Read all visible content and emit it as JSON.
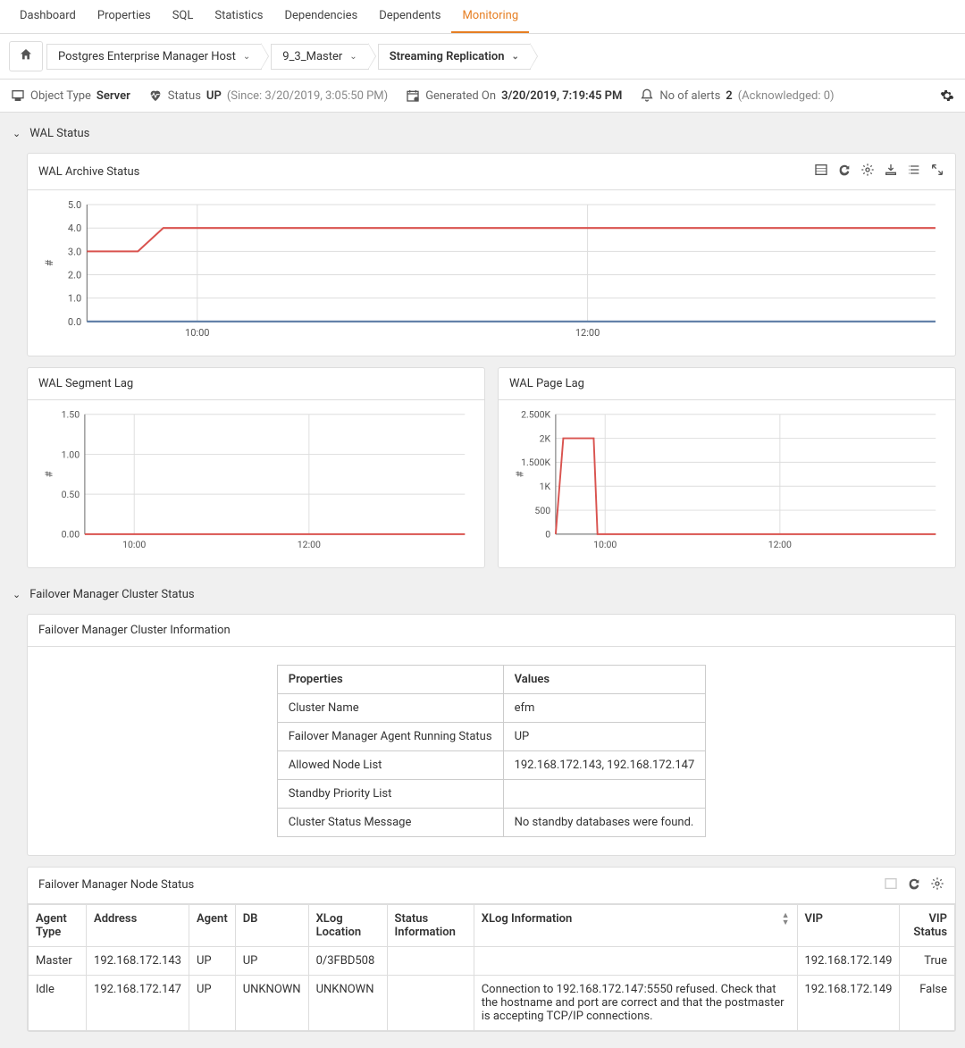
{
  "tabs": [
    "Dashboard",
    "Properties",
    "SQL",
    "Statistics",
    "Dependencies",
    "Dependents",
    "Monitoring"
  ],
  "active_tab": "Monitoring",
  "breadcrumbs": [
    {
      "label": "Postgres Enterprise Manager Host",
      "bold": false
    },
    {
      "label": "9_3_Master",
      "bold": false
    },
    {
      "label": "Streaming Replication",
      "bold": true
    }
  ],
  "status_bar": {
    "object_type_label": "Object Type",
    "object_type_value": "Server",
    "status_label": "Status",
    "status_value": "UP",
    "status_since": "(Since: 3/20/2019, 3:05:50 PM)",
    "generated_label": "Generated On",
    "generated_value": "3/20/2019, 7:19:45 PM",
    "alerts_label": "No of alerts",
    "alerts_count": "2",
    "alerts_ack": "(Acknowledged: 0)"
  },
  "wal_status": {
    "section_title": "WAL Status",
    "archive": {
      "title": "WAL Archive Status",
      "type": "line",
      "ylabel": "#",
      "ylim": [
        0,
        5
      ],
      "yticks": [
        "0.0",
        "1.0",
        "2.0",
        "3.0",
        "4.0",
        "5.0"
      ],
      "xticks": [
        "10:00",
        "12:00"
      ],
      "xtick_pos": [
        0.13,
        0.59
      ],
      "grid_color": "#dddddd",
      "axis_color": "#666666",
      "series": [
        {
          "color": "#d9534f",
          "points": [
            [
              0,
              3
            ],
            [
              0.06,
              3
            ],
            [
              0.09,
              4
            ],
            [
              1,
              4
            ]
          ]
        },
        {
          "color": "#5b7ba5",
          "points": [
            [
              0,
              0
            ],
            [
              1,
              0
            ]
          ]
        }
      ]
    },
    "segment_lag": {
      "title": "WAL Segment Lag",
      "type": "line",
      "ylabel": "#",
      "ylim": [
        0,
        1.5
      ],
      "yticks": [
        "0.00",
        "0.50",
        "1.00",
        "1.50"
      ],
      "xticks": [
        "10:00",
        "12:00"
      ],
      "xtick_pos": [
        0.13,
        0.59
      ],
      "series": [
        {
          "color": "#d9534f",
          "points": [
            [
              0,
              0
            ],
            [
              1,
              0
            ]
          ]
        }
      ]
    },
    "page_lag": {
      "title": "WAL Page Lag",
      "type": "line",
      "ylabel": "#",
      "ylim": [
        0,
        2500
      ],
      "yticks": [
        "0",
        "500",
        "1K",
        "1.500K",
        "2K",
        "2.500K"
      ],
      "xticks": [
        "10:00",
        "12:00"
      ],
      "xtick_pos": [
        0.13,
        0.59
      ],
      "series": [
        {
          "color": "#d9534f",
          "points": [
            [
              0,
              0
            ],
            [
              0.02,
              2000
            ],
            [
              0.1,
              2000
            ],
            [
              0.11,
              0
            ],
            [
              1,
              0
            ]
          ]
        }
      ]
    }
  },
  "failover": {
    "section_title": "Failover Manager Cluster Status",
    "info_panel_title": "Failover Manager Cluster Information",
    "info_headers": [
      "Properties",
      "Values"
    ],
    "info_rows": [
      [
        "Cluster Name",
        "efm"
      ],
      [
        "Failover Manager Agent Running Status",
        "UP"
      ],
      [
        "Allowed Node List",
        "192.168.172.143, 192.168.172.147"
      ],
      [
        "Standby Priority List",
        ""
      ],
      [
        "Cluster Status Message",
        "No standby databases were found."
      ]
    ],
    "node_panel_title": "Failover Manager Node Status",
    "node_headers": [
      "Agent Type",
      "Address",
      "Agent",
      "DB",
      "XLog Location",
      "Status Information",
      "XLog Information",
      "VIP",
      "VIP Status"
    ],
    "node_rows": [
      {
        "agent_type": "Master",
        "address": "192.168.172.143",
        "agent": "UP",
        "db": "UP",
        "xlog_loc": "0/3FBD508",
        "status_info": "",
        "xlog_info": "",
        "vip": "192.168.172.149",
        "vip_status": "True"
      },
      {
        "agent_type": "Idle",
        "address": "192.168.172.147",
        "agent": "UP",
        "db": "UNKNOWN",
        "xlog_loc": "UNKNOWN",
        "status_info": "",
        "xlog_info": "Connection to 192.168.172.147:5550 refused. Check that the hostname and port are correct and that the postmaster is accepting TCP/IP connections.",
        "vip": "192.168.172.149",
        "vip_status": "False"
      }
    ]
  }
}
